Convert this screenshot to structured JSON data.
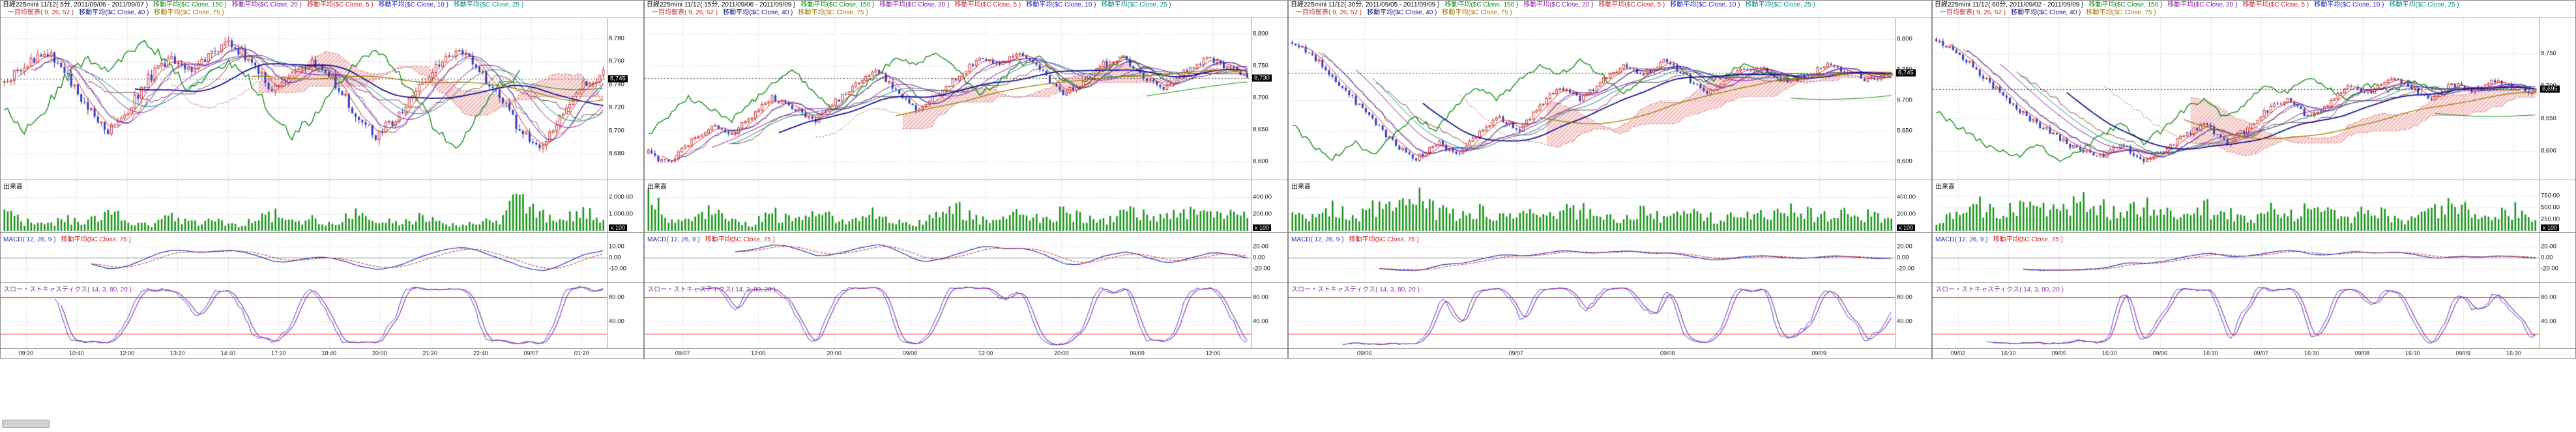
{
  "shared": {
    "volume_label": "出来高",
    "macd_label": "MACD( 12, 26, 9 )",
    "macd_ma_label": "移動平均($C Close, 75 )",
    "stoch_label": "スロー・ストキャスティクス( 14, 3, 80, 20 )"
  },
  "colors": {
    "ma5": "#d22020",
    "ma10": "#2020cc",
    "ma20": "#8a12a8",
    "ma25": "#0a8a8a",
    "ma40": "#101090",
    "ma75": "#a07800",
    "ma150": "#108a10",
    "ichimoku_spanA": "#d06060",
    "ichimoku_spanB": "#d08080",
    "chikou": "#108a10",
    "candle_up": "#cc3333",
    "candle_down": "#2b3bbf",
    "volume_bar": "#129012",
    "macd_line": "#2233bb",
    "macd_signal": "#cc2222",
    "stoch_k": "#3344cc",
    "stoch_d": "#9933aa",
    "stoch_level": "#dd2222",
    "grid": "#c9c9c9",
    "badge_bg": "#000000",
    "badge_text": "#ffffff"
  },
  "panels": [
    {
      "title": "日経225mini 11/12( 5分, 2011/09/06 - 2011/09/07 )",
      "indicators_row1": [
        {
          "label": "移動平均($C Close, 150 )",
          "color": "#108a10"
        },
        {
          "label": "移動平均($C Close, 20 )",
          "color": "#8a12a8"
        },
        {
          "label": "移動平均($C Close, 5 )",
          "color": "#d22020"
        },
        {
          "label": "移動平均($C Close, 10 )",
          "color": "#2020cc"
        },
        {
          "label": "移動平均($C Close, 25 )",
          "color": "#0a8a8a"
        }
      ],
      "indicators_row2": [
        {
          "label": "一目均衡表( 9, 26, 52 )",
          "color": "#c03030"
        },
        {
          "label": "移動平均($C Close, 40 )",
          "color": "#101090"
        },
        {
          "label": "移動平均($C Close, 75 )",
          "color": "#a07800"
        }
      ]
    },
    {
      "title": "日経225mini 11/12( 15分, 2011/09/06 - 2011/09/09 )",
      "indicators_row1": [
        {
          "label": "移動平均($C Close, 150 )",
          "color": "#108a10"
        },
        {
          "label": "移動平均($C Close, 20 )",
          "color": "#8a12a8"
        },
        {
          "label": "移動平均($C Close, 5 )",
          "color": "#d22020"
        },
        {
          "label": "移動平均($C Close, 10 )",
          "color": "#2020cc"
        },
        {
          "label": "移動平均($C Close, 25 )",
          "color": "#0a8a8a"
        }
      ],
      "indicators_row2": [
        {
          "label": "一目均衡表( 9, 26, 52 )",
          "color": "#c03030"
        },
        {
          "label": "移動平均($C Close, 40 )",
          "color": "#101090"
        },
        {
          "label": "移動平均($C Close, 75 )",
          "color": "#a07800"
        }
      ]
    },
    {
      "title": "日経225mini 11/12( 30分, 2011/09/05 - 2011/09/09 )",
      "indicators_row1": [
        {
          "label": "移動平均($C Close, 150 )",
          "color": "#108a10"
        },
        {
          "label": "移動平均($C Close, 20 )",
          "color": "#8a12a8"
        },
        {
          "label": "移動平均($C Close, 5 )",
          "color": "#d22020"
        },
        {
          "label": "移動平均($C Close, 10 )",
          "color": "#2020cc"
        },
        {
          "label": "移動平均($C Close, 25 )",
          "color": "#0a8a8a"
        }
      ],
      "indicators_row2": [
        {
          "label": "一目均衡表( 9, 26, 52 )",
          "color": "#c03030"
        },
        {
          "label": "移動平均($C Close, 40 )",
          "color": "#101090"
        },
        {
          "label": "移動平均($C Close, 75 )",
          "color": "#a07800"
        }
      ]
    },
    {
      "title": "日経225mini 11/12( 60分, 2011/09/02 - 2011/09/09 )",
      "indicators_row1": [
        {
          "label": "移動平均($C Close, 150 )",
          "color": "#108a10"
        },
        {
          "label": "移動平均($C Close, 20 )",
          "color": "#8a12a8"
        },
        {
          "label": "移動平均($C Close, 5 )",
          "color": "#d22020"
        },
        {
          "label": "移動平均($C Close, 10 )",
          "color": "#2020cc"
        },
        {
          "label": "移動平均($C Close, 25 )",
          "color": "#0a8a8a"
        }
      ],
      "indicators_row2": [
        {
          "label": "一目均衡表( 9, 26, 52 )",
          "color": "#c03030"
        },
        {
          "label": "移動平均($C Close, 40 )",
          "color": "#101090"
        },
        {
          "label": "移動平均($C Close, 75 )",
          "color": "#a07800"
        }
      ]
    }
  ],
  "chart_data": [
    {
      "type": "candlestick",
      "instrument": "日経225mini 11/12",
      "interval": "5分",
      "date_range": "2011/09/06 - 2011/09/07",
      "n_candles": 180,
      "price_axis": {
        "min": 8660,
        "max": 8795,
        "ticks": [
          8780,
          8760,
          8740,
          8720,
          8700,
          8680
        ],
        "current": 8745
      },
      "volume_axis": {
        "max": 2600,
        "ticks": [
          2000,
          1000
        ],
        "unit": "x 100"
      },
      "macd_axis": {
        "ticks": [
          10,
          0,
          -10
        ]
      },
      "stoch_axis": {
        "ticks": [
          80,
          40
        ],
        "levels": [
          80,
          20
        ]
      },
      "time_labels": [
        "09:20",
        "10:40",
        "12:00",
        "13:20",
        "14:40",
        "17:20",
        "18:40",
        "20:00",
        "21:20",
        "22:40",
        "09/07",
        "01:20"
      ],
      "close_anchors": [
        8742,
        8755,
        8770,
        8748,
        8722,
        8700,
        8718,
        8745,
        8762,
        8752,
        8768,
        8775,
        8758,
        8735,
        8748,
        8760,
        8742,
        8715,
        8695,
        8712,
        8738,
        8755,
        8770,
        8752,
        8728,
        8700,
        8682,
        8715,
        8742,
        8748
      ],
      "volume_anchors": [
        0.55,
        0.25,
        0.15,
        0.3,
        0.2,
        0.5,
        0.25,
        0.15,
        0.35,
        0.2,
        0.3,
        0.15,
        0.25,
        0.45,
        0.2,
        0.3,
        0.2,
        0.5,
        0.3,
        0.2,
        0.35,
        0.25,
        0.15,
        0.3,
        0.2,
        0.95,
        0.45,
        0.3,
        0.5,
        0.35
      ],
      "overlays": [
        "移動平均 5/10/20/25/40/75/150",
        "一目均衡表( 9, 26, 52 )"
      ],
      "studies": [
        "出来高",
        "MACD( 12, 26, 9 )",
        "スロー・ストキャスティクス( 14, 3, 80, 20 )"
      ]
    },
    {
      "type": "candlestick",
      "instrument": "日経225mini 11/12",
      "interval": "15分",
      "date_range": "2011/09/06 - 2011/09/09",
      "n_candles": 180,
      "price_axis": {
        "min": 8575,
        "max": 8820,
        "ticks": [
          8800,
          8750,
          8700,
          8650,
          8600
        ],
        "current": 8730
      },
      "volume_axis": {
        "max": 520,
        "ticks": [
          400,
          200
        ],
        "unit": "x 100"
      },
      "macd_axis": {
        "ticks": [
          20,
          0,
          -20
        ]
      },
      "stoch_axis": {
        "ticks": [
          80,
          40
        ],
        "levels": [
          80,
          20
        ]
      },
      "time_labels": [
        "09/07",
        "12:00",
        "20:00",
        "09/08",
        "12:00",
        "20:00",
        "09/09",
        "12:00"
      ],
      "close_anchors": [
        8612,
        8595,
        8628,
        8655,
        8642,
        8668,
        8700,
        8685,
        8662,
        8690,
        8722,
        8745,
        8712,
        8682,
        8702,
        8732,
        8762,
        8750,
        8772,
        8742,
        8705,
        8722,
        8752,
        8762,
        8732,
        8712,
        8742,
        8760,
        8748,
        8732
      ],
      "volume_anchors": [
        0.8,
        0.4,
        0.25,
        0.5,
        0.3,
        0.2,
        0.45,
        0.3,
        0.55,
        0.35,
        0.25,
        0.5,
        0.3,
        0.2,
        0.4,
        0.6,
        0.3,
        0.25,
        0.45,
        0.3,
        0.5,
        0.35,
        0.25,
        0.55,
        0.4,
        0.3,
        0.6,
        0.4,
        0.5,
        0.35
      ],
      "overlays": [
        "移動平均 5/10/20/25/40/75/150",
        "一目均衡表( 9, 26, 52 )"
      ],
      "studies": [
        "出来高",
        "MACD( 12, 26, 9 )",
        "スロー・ストキャスティクス( 14, 3, 80, 20 )"
      ]
    },
    {
      "type": "candlestick",
      "instrument": "日経225mini 11/12",
      "interval": "30分",
      "date_range": "2011/09/05 - 2011/09/09",
      "n_candles": 180,
      "price_axis": {
        "min": 8575,
        "max": 8830,
        "ticks": [
          8800,
          8750,
          8700,
          8650,
          8600
        ],
        "current": 8745
      },
      "volume_axis": {
        "max": 520,
        "ticks": [
          400,
          200
        ],
        "unit": "x 100"
      },
      "macd_axis": {
        "ticks": [
          20,
          0,
          -20
        ]
      },
      "stoch_axis": {
        "ticks": [
          80,
          40
        ],
        "levels": [
          80,
          20
        ]
      },
      "time_labels": [
        "09/06",
        "09/07",
        "09/08",
        "09/09"
      ],
      "close_anchors": [
        8795,
        8772,
        8738,
        8700,
        8662,
        8628,
        8605,
        8632,
        8612,
        8645,
        8672,
        8652,
        8692,
        8722,
        8702,
        8732,
        8755,
        8742,
        8765,
        8742,
        8712,
        8732,
        8755,
        8748,
        8728,
        8742,
        8758,
        8745,
        8732,
        8744
      ],
      "volume_anchors": [
        0.5,
        0.3,
        0.6,
        0.4,
        0.7,
        0.5,
        0.9,
        0.5,
        0.4,
        0.6,
        0.35,
        0.5,
        0.3,
        0.45,
        0.6,
        0.4,
        0.3,
        0.5,
        0.35,
        0.55,
        0.4,
        0.3,
        0.5,
        0.4,
        0.6,
        0.45,
        0.35,
        0.5,
        0.4,
        0.3
      ],
      "overlays": [
        "移動平均 5/10/20/25/40/75/150",
        "一目均衡表( 9, 26, 52 )"
      ],
      "studies": [
        "出来高",
        "MACD( 12, 26, 9 )",
        "スロー・ストキャスティクス( 14, 3, 80, 20 )"
      ]
    },
    {
      "type": "candlestick",
      "instrument": "日経225mini 11/12",
      "interval": "60分",
      "date_range": "2011/09/02 - 2011/09/09",
      "n_candles": 180,
      "price_axis": {
        "min": 8560,
        "max": 8800,
        "ticks": [
          8750,
          8700,
          8650,
          8600
        ],
        "current": 8695
      },
      "volume_axis": {
        "max": 950,
        "ticks": [
          750,
          500,
          250
        ],
        "unit": "x 100"
      },
      "macd_axis": {
        "ticks": [
          20,
          0,
          -20
        ]
      },
      "stoch_axis": {
        "ticks": [
          80,
          40
        ],
        "levels": [
          80,
          20
        ]
      },
      "time_labels": [
        "09/02",
        "16:30",
        "09/05",
        "16:30",
        "09/06",
        "16:30",
        "09/07",
        "16:30",
        "09/08",
        "16:30",
        "09/09",
        "16:30"
      ],
      "close_anchors": [
        8772,
        8752,
        8722,
        8692,
        8662,
        8640,
        8618,
        8600,
        8590,
        8612,
        8582,
        8602,
        8622,
        8642,
        8612,
        8632,
        8662,
        8682,
        8652,
        8672,
        8700,
        8690,
        8712,
        8696,
        8682,
        8702,
        8692,
        8706,
        8696,
        8692
      ],
      "volume_anchors": [
        0.3,
        0.5,
        0.7,
        0.4,
        0.6,
        0.8,
        0.5,
        0.9,
        0.6,
        0.4,
        0.7,
        0.5,
        0.35,
        0.6,
        0.45,
        0.3,
        0.55,
        0.4,
        0.6,
        0.45,
        0.35,
        0.55,
        0.4,
        0.3,
        0.5,
        0.65,
        0.45,
        0.35,
        0.55,
        0.4
      ],
      "overlays": [
        "移動平均 5/10/20/25/40/75/150",
        "一目均衡表( 9, 26, 52 )"
      ],
      "studies": [
        "出来高",
        "MACD( 12, 26, 9 )",
        "スロー・ストキャスティクス( 14, 3, 80, 20 )"
      ]
    }
  ]
}
